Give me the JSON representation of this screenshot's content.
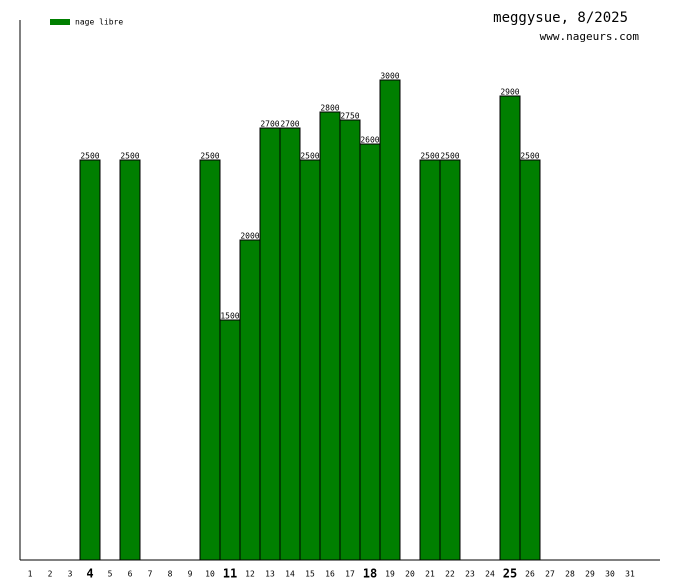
{
  "chart_data": {
    "type": "bar",
    "title": "meggysue, 8/2025",
    "subtitle": "www.nageurs.com",
    "categories": [
      "1",
      "2",
      "3",
      "4",
      "5",
      "6",
      "7",
      "8",
      "9",
      "10",
      "11",
      "12",
      "13",
      "14",
      "15",
      "16",
      "17",
      "18",
      "19",
      "20",
      "21",
      "22",
      "23",
      "24",
      "25",
      "26",
      "27",
      "28",
      "29",
      "30",
      "31"
    ],
    "series": [
      {
        "name": "nage libre",
        "color": "#007f00",
        "values": [
          null,
          null,
          null,
          2500,
          null,
          2500,
          null,
          null,
          null,
          2500,
          1500,
          2000,
          2700,
          2700,
          2500,
          2800,
          2750,
          2600,
          3000,
          null,
          2500,
          2500,
          null,
          null,
          2900,
          2500,
          null,
          null,
          null,
          null,
          null
        ]
      }
    ],
    "ylim": [
      0,
      3375
    ],
    "bold_every": 7,
    "bold_offset": 3
  }
}
